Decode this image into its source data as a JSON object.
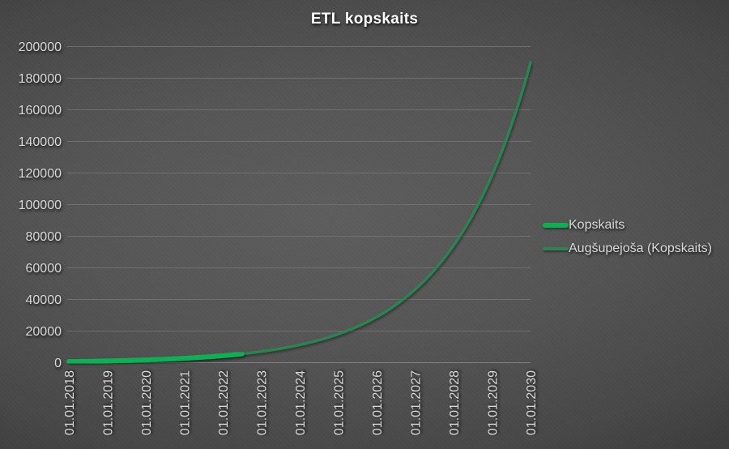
{
  "title": "ETL kopskaits",
  "colors": {
    "title_text": "#ffffff",
    "axis_text": "#d9d9d9",
    "gridline": "#757575",
    "axis_line": "#8a8a8a",
    "series_green": "#0ab152",
    "trend_green": "#2b8451",
    "background_center": "#5d5d5d",
    "background_edge": "#262626"
  },
  "legend": {
    "items": [
      {
        "label": "Kopskaits",
        "color": "#0ab152",
        "thickness": 6
      },
      {
        "label": "Augšupejoša (Kopskaits)",
        "color": "#2b8451",
        "thickness": 4
      }
    ]
  },
  "chart_data": {
    "type": "line",
    "title": "ETL kopskaits",
    "xlabel": "",
    "ylabel": "",
    "x_tick_labels": [
      "01.01.2018",
      "01.01.2019",
      "01.01.2020",
      "01.01.2021",
      "01.01.2022",
      "01.01.2023",
      "01.01.2024",
      "01.01.2025",
      "01.01.2026",
      "01.01.2027",
      "01.01.2028",
      "01.01.2029",
      "01.01.2030"
    ],
    "x_tick_years": [
      2018,
      2019,
      2020,
      2021,
      2022,
      2023,
      2024,
      2025,
      2026,
      2027,
      2028,
      2029,
      2030
    ],
    "y_ticks": [
      0,
      20000,
      40000,
      60000,
      80000,
      100000,
      120000,
      140000,
      160000,
      180000,
      200000
    ],
    "ylim": [
      0,
      200000
    ],
    "xlim": [
      2018,
      2030
    ],
    "grid": true,
    "legend_position": "right",
    "interpolation": "exponential",
    "series": [
      {
        "name": "Kopskaits",
        "role": "data",
        "color": "#0ab152",
        "stroke_width": 6,
        "points": [
          [
            2018,
            700
          ],
          [
            2019,
            1100
          ],
          [
            2020,
            1750
          ],
          [
            2021,
            2800
          ],
          [
            2022,
            4400
          ],
          [
            2022.5,
            5600
          ]
        ]
      },
      {
        "name": "Augšupejoša (Kopskaits)",
        "role": "trendline",
        "color": "#2b8451",
        "stroke_width": 3.5,
        "points": [
          [
            2018,
            700
          ],
          [
            2019,
            1100
          ],
          [
            2020,
            1750
          ],
          [
            2021,
            2800
          ],
          [
            2022,
            4400
          ],
          [
            2023,
            7100
          ],
          [
            2024,
            11300
          ],
          [
            2025,
            18100
          ],
          [
            2026,
            29000
          ],
          [
            2027,
            46400
          ],
          [
            2028,
            74300
          ],
          [
            2029,
            118800
          ],
          [
            2030,
            190000
          ]
        ]
      }
    ]
  }
}
